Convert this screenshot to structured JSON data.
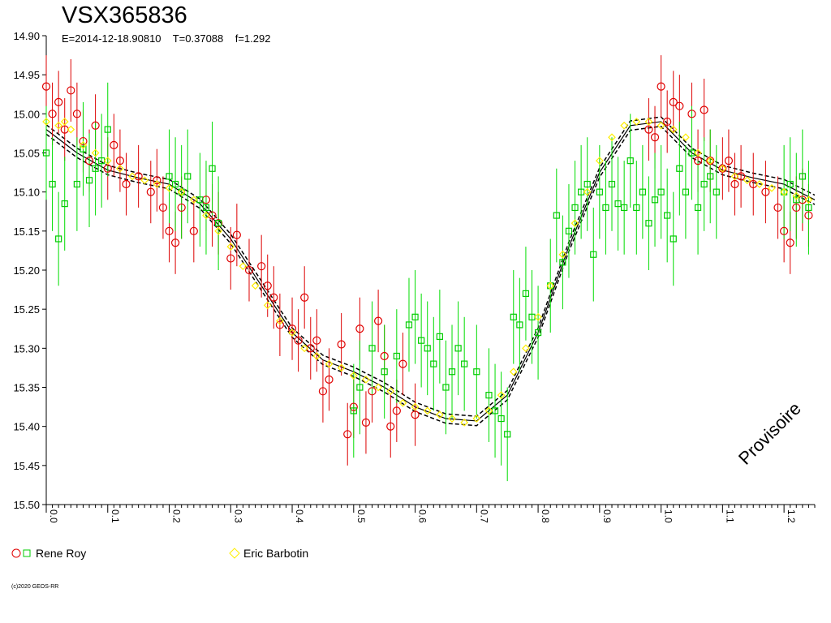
{
  "colors": {
    "rene_circle": "#e00000",
    "rene_square": "#00cc00",
    "barbotin": "#ffee00",
    "errorbar_red": "#dd0000",
    "errorbar_green": "#00dd00",
    "fit": "#000000"
  },
  "legend": [
    {
      "label": "Rene Roy"
    },
    {
      "label": "Eric Barbotin"
    }
  ],
  "copyright": "(c)2020 GEOS-RR",
  "watermark": "Provisoire",
  "chart_data": {
    "type": "scatter",
    "title": "VSX365836",
    "subtitle": "E=2014-12-18.90810    T=0.37088    f=1.292",
    "xlabel": "",
    "ylabel": "",
    "xlim": [
      0.0,
      1.25
    ],
    "ylim": [
      14.9,
      15.5
    ],
    "y_inverted": true,
    "y_ticks": [
      "14.90",
      "14.95",
      "15.00",
      "15.05",
      "15.10",
      "15.15",
      "15.20",
      "15.25",
      "15.30",
      "15.35",
      "15.40",
      "15.45",
      "15.50"
    ],
    "x_ticks": [
      "0.0",
      "0.1",
      "0.2",
      "0.3",
      "0.4",
      "0.5",
      "0.6",
      "0.7",
      "0.8",
      "0.9",
      "1.0",
      "1.1",
      "1.2"
    ],
    "fit_curve": {
      "phase": [
        0.0,
        0.05,
        0.1,
        0.15,
        0.2,
        0.25,
        0.3,
        0.35,
        0.4,
        0.45,
        0.5,
        0.55,
        0.6,
        0.65,
        0.7,
        0.75,
        0.8,
        0.85,
        0.9,
        0.95,
        1.0,
        1.05,
        1.1,
        1.15,
        1.2,
        1.25
      ],
      "mag": [
        15.02,
        15.05,
        15.072,
        15.082,
        15.09,
        15.115,
        15.16,
        15.22,
        15.28,
        15.315,
        15.33,
        15.35,
        15.375,
        15.39,
        15.393,
        15.36,
        15.28,
        15.17,
        15.075,
        15.015,
        15.01,
        15.05,
        15.072,
        15.082,
        15.09,
        15.11
      ],
      "band": 0.006
    },
    "series": [
      {
        "name": "Rene Roy",
        "marker": "circle",
        "x": [
          0.0,
          0.01,
          0.02,
          0.03,
          0.04,
          0.05,
          0.06,
          0.07,
          0.08,
          0.1,
          0.11,
          0.12,
          0.13,
          0.15,
          0.17,
          0.18,
          0.19,
          0.2,
          0.21,
          0.22,
          0.24,
          0.26,
          0.27,
          0.28,
          0.3,
          0.31,
          0.33,
          0.35,
          0.36,
          0.37,
          0.38,
          0.4,
          0.41,
          0.42,
          0.43,
          0.44,
          0.45,
          0.46,
          0.48,
          0.49,
          0.5,
          0.51,
          0.52,
          0.53,
          0.54,
          0.55,
          0.56,
          0.57,
          0.58,
          0.6,
          0.98,
          0.99,
          1.0,
          1.01,
          1.02,
          1.03,
          1.05,
          1.06,
          1.07,
          1.08,
          1.1,
          1.11,
          1.12,
          1.13,
          1.15,
          1.17,
          1.19,
          1.2,
          1.21,
          1.22,
          1.23,
          1.24
        ],
        "y": [
          14.965,
          15.0,
          14.985,
          15.02,
          14.97,
          15.0,
          15.035,
          15.06,
          15.015,
          15.07,
          15.04,
          15.06,
          15.09,
          15.08,
          15.1,
          15.085,
          15.12,
          15.15,
          15.165,
          15.12,
          15.15,
          15.11,
          15.13,
          15.14,
          15.185,
          15.155,
          15.2,
          15.195,
          15.22,
          15.235,
          15.27,
          15.275,
          15.29,
          15.235,
          15.3,
          15.29,
          15.355,
          15.34,
          15.295,
          15.41,
          15.375,
          15.275,
          15.395,
          15.355,
          15.265,
          15.31,
          15.4,
          15.38,
          15.32,
          15.385,
          15.02,
          15.03,
          14.965,
          15.01,
          14.985,
          14.99,
          15.0,
          15.06,
          14.995,
          15.06,
          15.07,
          15.06,
          15.09,
          15.08,
          15.09,
          15.1,
          15.12,
          15.15,
          15.165,
          15.12,
          15.11,
          15.13
        ],
        "err": 0.04
      },
      {
        "name": "Rene Roy",
        "marker": "square",
        "x": [
          0.0,
          0.01,
          0.02,
          0.03,
          0.05,
          0.06,
          0.07,
          0.08,
          0.09,
          0.1,
          0.2,
          0.21,
          0.22,
          0.23,
          0.25,
          0.26,
          0.27,
          0.28,
          0.5,
          0.51,
          0.53,
          0.55,
          0.57,
          0.59,
          0.6,
          0.61,
          0.62,
          0.63,
          0.64,
          0.65,
          0.66,
          0.67,
          0.68,
          0.7,
          0.72,
          0.73,
          0.74,
          0.75,
          0.76,
          0.77,
          0.78,
          0.79,
          0.8,
          0.82,
          0.83,
          0.84,
          0.85,
          0.86,
          0.87,
          0.88,
          0.89,
          0.9,
          0.91,
          0.92,
          0.93,
          0.94,
          0.95,
          0.96,
          0.97,
          0.98,
          0.99,
          1.0,
          1.01,
          1.02,
          1.03,
          1.04,
          1.05,
          1.06,
          1.07,
          1.08,
          1.09,
          1.2,
          1.21,
          1.22,
          1.23,
          1.24
        ],
        "y": [
          15.05,
          15.09,
          15.16,
          15.115,
          15.09,
          15.045,
          15.085,
          15.07,
          15.06,
          15.02,
          15.08,
          15.09,
          15.1,
          15.08,
          15.11,
          15.12,
          15.07,
          15.14,
          15.38,
          15.35,
          15.3,
          15.33,
          15.31,
          15.27,
          15.26,
          15.29,
          15.3,
          15.32,
          15.285,
          15.35,
          15.33,
          15.3,
          15.32,
          15.33,
          15.36,
          15.38,
          15.39,
          15.41,
          15.26,
          15.27,
          15.23,
          15.26,
          15.28,
          15.22,
          15.13,
          15.19,
          15.15,
          15.12,
          15.1,
          15.09,
          15.18,
          15.1,
          15.12,
          15.09,
          15.115,
          15.12,
          15.06,
          15.12,
          15.1,
          15.14,
          15.11,
          15.1,
          15.13,
          15.16,
          15.07,
          15.1,
          15.05,
          15.12,
          15.09,
          15.08,
          15.1,
          15.1,
          15.09,
          15.11,
          15.08,
          15.12
        ],
        "err": 0.06
      },
      {
        "name": "Eric Barbotin",
        "marker": "diamond",
        "x": [
          0.0,
          0.02,
          0.03,
          0.04,
          0.06,
          0.08,
          0.1,
          0.12,
          0.14,
          0.16,
          0.18,
          0.2,
          0.22,
          0.24,
          0.26,
          0.28,
          0.3,
          0.32,
          0.34,
          0.36,
          0.38,
          0.4,
          0.42,
          0.44,
          0.46,
          0.48,
          0.5,
          0.52,
          0.54,
          0.56,
          0.58,
          0.6,
          0.62,
          0.64,
          0.66,
          0.68,
          0.7,
          0.72,
          0.74,
          0.76,
          0.78,
          0.8,
          0.82,
          0.84,
          0.86,
          0.88,
          0.9,
          0.92,
          0.94,
          0.96,
          0.98,
          1.0,
          1.02,
          1.04,
          1.06,
          1.08,
          1.1,
          1.12,
          1.14,
          1.16,
          1.18,
          1.2,
          1.22,
          1.24
        ],
        "y": [
          15.01,
          15.015,
          15.01,
          15.02,
          15.04,
          15.05,
          15.06,
          15.07,
          15.08,
          15.085,
          15.09,
          15.095,
          15.1,
          15.11,
          15.13,
          15.15,
          15.17,
          15.195,
          15.22,
          15.245,
          15.265,
          15.28,
          15.3,
          15.31,
          15.32,
          15.325,
          15.335,
          15.34,
          15.35,
          15.355,
          15.37,
          15.375,
          15.38,
          15.385,
          15.39,
          15.395,
          15.39,
          15.38,
          15.36,
          15.33,
          15.3,
          15.26,
          15.22,
          15.18,
          15.14,
          15.1,
          15.06,
          15.03,
          15.015,
          15.01,
          15.01,
          15.015,
          15.02,
          15.03,
          15.05,
          15.06,
          15.07,
          15.08,
          15.085,
          15.09,
          15.095,
          15.1,
          15.105,
          15.11
        ],
        "err": 0.0
      }
    ]
  }
}
